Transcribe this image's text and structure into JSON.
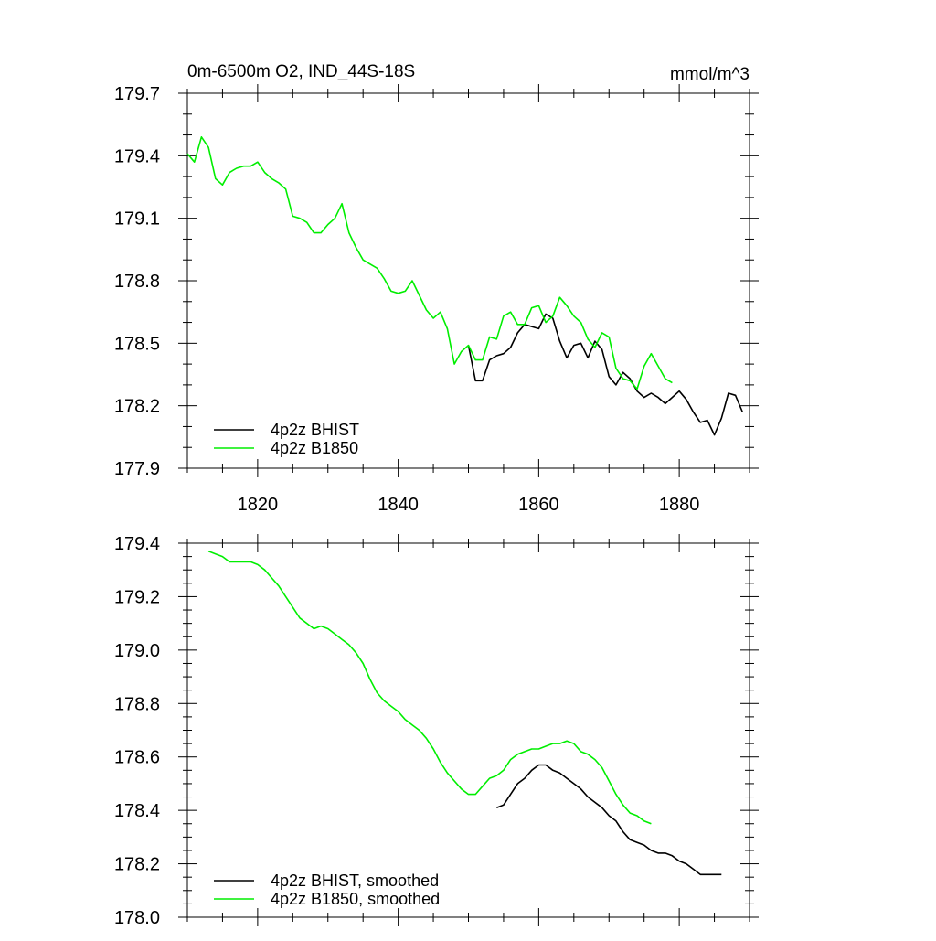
{
  "chart_data": [
    {
      "type": "line",
      "title": "0m-6500m O2, IND_44S-18S",
      "units": "mmol/m^3",
      "xlabel": "",
      "ylabel": "",
      "xlim": [
        1810,
        1890
      ],
      "ylim": [
        177.9,
        179.7
      ],
      "xticks": [
        1820,
        1840,
        1860,
        1880
      ],
      "xtick_labels": [
        "1820",
        "1840",
        "1860",
        "1880"
      ],
      "yticks": [
        177.9,
        178.2,
        178.5,
        178.8,
        179.1,
        179.4,
        179.7
      ],
      "ytick_labels": [
        "177.9",
        "178.2",
        "178.5",
        "178.8",
        "179.1",
        "179.4",
        "179.7"
      ],
      "grid": false,
      "legend_position": "bottom-left",
      "series": [
        {
          "name": "4p2z BHIST",
          "color": "#000000",
          "x": [
            1850,
            1851,
            1852,
            1853,
            1854,
            1855,
            1856,
            1857,
            1858,
            1859,
            1860,
            1861,
            1862,
            1863,
            1864,
            1865,
            1866,
            1867,
            1868,
            1869,
            1870,
            1871,
            1872,
            1873,
            1874,
            1875,
            1876,
            1877,
            1878,
            1879,
            1880,
            1881,
            1882,
            1883,
            1884,
            1885,
            1886,
            1887,
            1888,
            1889
          ],
          "values": [
            178.49,
            178.32,
            178.32,
            178.42,
            178.44,
            178.45,
            178.48,
            178.55,
            178.59,
            178.58,
            178.57,
            178.64,
            178.62,
            178.51,
            178.43,
            178.49,
            178.5,
            178.43,
            178.51,
            178.47,
            178.34,
            178.3,
            178.36,
            178.33,
            178.27,
            178.24,
            178.26,
            178.24,
            178.21,
            178.24,
            178.27,
            178.23,
            178.17,
            178.12,
            178.13,
            178.06,
            178.14,
            178.26,
            178.25,
            178.17
          ]
        },
        {
          "name": "4p2z B1850",
          "color": "#00ee00",
          "x": [
            1810,
            1811,
            1812,
            1813,
            1814,
            1815,
            1816,
            1817,
            1818,
            1819,
            1820,
            1821,
            1822,
            1823,
            1824,
            1825,
            1826,
            1827,
            1828,
            1829,
            1830,
            1831,
            1832,
            1833,
            1834,
            1835,
            1836,
            1837,
            1838,
            1839,
            1840,
            1841,
            1842,
            1843,
            1844,
            1845,
            1846,
            1847,
            1848,
            1849,
            1850,
            1851,
            1852,
            1853,
            1854,
            1855,
            1856,
            1857,
            1858,
            1859,
            1860,
            1861,
            1862,
            1863,
            1864,
            1865,
            1866,
            1867,
            1868,
            1869,
            1870,
            1871,
            1872,
            1873,
            1874,
            1875,
            1876,
            1877,
            1878,
            1879
          ],
          "values": [
            179.41,
            179.37,
            179.49,
            179.44,
            179.29,
            179.26,
            179.32,
            179.34,
            179.35,
            179.35,
            179.37,
            179.32,
            179.29,
            179.27,
            179.24,
            179.11,
            179.1,
            179.08,
            179.03,
            179.03,
            179.07,
            179.1,
            179.17,
            179.03,
            178.96,
            178.9,
            178.88,
            178.86,
            178.81,
            178.75,
            178.74,
            178.75,
            178.8,
            178.73,
            178.66,
            178.62,
            178.65,
            178.57,
            178.4,
            178.46,
            178.49,
            178.42,
            178.42,
            178.53,
            178.52,
            178.63,
            178.65,
            178.59,
            178.59,
            178.67,
            178.68,
            178.6,
            178.63,
            178.72,
            178.68,
            178.63,
            178.6,
            178.52,
            178.48,
            178.55,
            178.53,
            178.38,
            178.33,
            178.32,
            178.28,
            178.39,
            178.45,
            178.39,
            178.33,
            178.31
          ]
        }
      ]
    },
    {
      "type": "line",
      "title": "",
      "xlabel": "",
      "ylabel": "",
      "xlim": [
        1810,
        1890
      ],
      "ylim": [
        178.0,
        179.4
      ],
      "xticks": [
        1820,
        1840,
        1860,
        1880
      ],
      "xtick_labels": [],
      "yticks": [
        178.0,
        178.2,
        178.4,
        178.6,
        178.8,
        179.0,
        179.2,
        179.4
      ],
      "ytick_labels": [
        "178.0",
        "178.2",
        "178.4",
        "178.6",
        "178.8",
        "179.0",
        "179.2",
        "179.4"
      ],
      "grid": false,
      "legend_position": "bottom-left",
      "series": [
        {
          "name": "4p2z BHIST, smoothed",
          "color": "#000000",
          "x": [
            1854,
            1855,
            1856,
            1857,
            1858,
            1859,
            1860,
            1861,
            1862,
            1863,
            1864,
            1865,
            1866,
            1867,
            1868,
            1869,
            1870,
            1871,
            1872,
            1873,
            1874,
            1875,
            1876,
            1877,
            1878,
            1879,
            1880,
            1881,
            1882,
            1883,
            1884,
            1885,
            1886
          ],
          "values": [
            178.41,
            178.42,
            178.46,
            178.5,
            178.52,
            178.55,
            178.57,
            178.57,
            178.55,
            178.54,
            178.52,
            178.5,
            178.48,
            178.45,
            178.43,
            178.41,
            178.38,
            178.36,
            178.32,
            178.29,
            178.28,
            178.27,
            178.25,
            178.24,
            178.24,
            178.23,
            178.21,
            178.2,
            178.18,
            178.16,
            178.16,
            178.16,
            178.16
          ]
        },
        {
          "name": "4p2z B1850, smoothed",
          "color": "#00ee00",
          "x": [
            1813,
            1814,
            1815,
            1816,
            1817,
            1818,
            1819,
            1820,
            1821,
            1822,
            1823,
            1824,
            1825,
            1826,
            1827,
            1828,
            1829,
            1830,
            1831,
            1832,
            1833,
            1834,
            1835,
            1836,
            1837,
            1838,
            1839,
            1840,
            1841,
            1842,
            1843,
            1844,
            1845,
            1846,
            1847,
            1848,
            1849,
            1850,
            1851,
            1852,
            1853,
            1854,
            1855,
            1856,
            1857,
            1858,
            1859,
            1860,
            1861,
            1862,
            1863,
            1864,
            1865,
            1866,
            1867,
            1868,
            1869,
            1870,
            1871,
            1872,
            1873,
            1874,
            1875,
            1876
          ],
          "values": [
            179.37,
            179.36,
            179.35,
            179.33,
            179.33,
            179.33,
            179.33,
            179.32,
            179.3,
            179.27,
            179.24,
            179.2,
            179.16,
            179.12,
            179.1,
            179.08,
            179.09,
            179.08,
            179.06,
            179.04,
            179.02,
            178.99,
            178.95,
            178.89,
            178.84,
            178.81,
            178.79,
            178.77,
            178.74,
            178.72,
            178.7,
            178.67,
            178.63,
            178.58,
            178.54,
            178.51,
            178.48,
            178.46,
            178.46,
            178.49,
            178.52,
            178.53,
            178.55,
            178.59,
            178.61,
            178.62,
            178.63,
            178.63,
            178.64,
            178.65,
            178.65,
            178.66,
            178.65,
            178.62,
            178.61,
            178.59,
            178.56,
            178.51,
            178.46,
            178.42,
            178.39,
            178.38,
            178.36,
            178.35
          ]
        }
      ]
    }
  ]
}
